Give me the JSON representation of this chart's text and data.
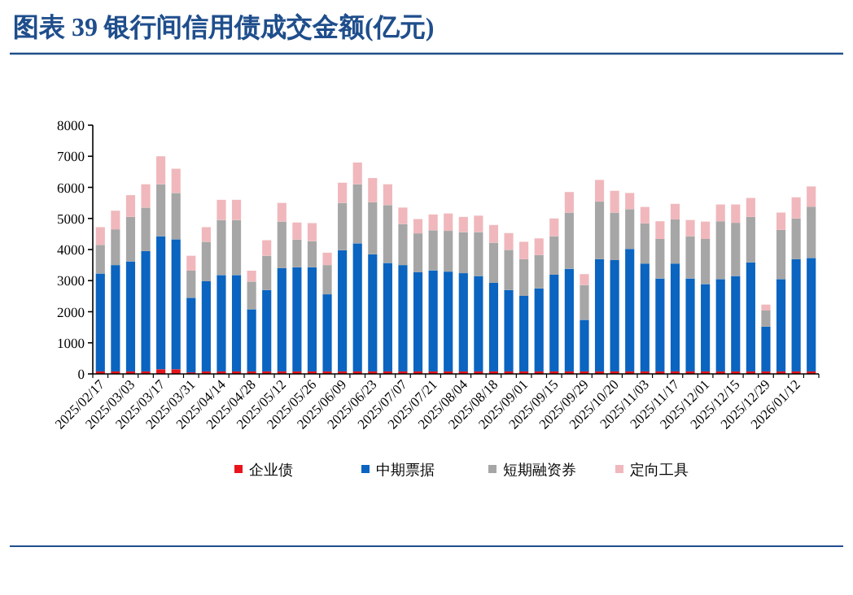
{
  "chart_data": {
    "type": "bar",
    "stacked": true,
    "title": "图表 39  银行间信用债成交金额(亿元)",
    "categories": [
      "2025/02/17",
      null,
      "2025/03/03",
      null,
      "2025/03/17",
      null,
      "2025/03/31",
      null,
      "2025/04/14",
      null,
      "2025/04/28",
      null,
      "2025/05/12",
      null,
      "2025/05/26",
      null,
      "2025/06/09",
      null,
      "2025/06/23",
      null,
      "2025/07/07",
      null,
      "2025/07/21",
      null,
      "2025/08/04",
      null,
      "2025/08/18",
      null,
      "2025/09/01",
      null,
      "2025/09/15",
      null,
      "2025/09/29",
      null,
      "2025/10/20",
      null,
      "2025/11/03",
      null,
      "2025/11/17",
      null,
      "2025/12/01",
      null,
      "2025/12/15",
      null,
      "2025/12/29",
      null,
      "2026/01/12",
      null
    ],
    "series": [
      {
        "name": "企业债",
        "color": "#e8141c",
        "values": [
          80,
          80,
          80,
          80,
          150,
          150,
          50,
          80,
          80,
          80,
          80,
          80,
          80,
          80,
          80,
          80,
          80,
          80,
          80,
          80,
          80,
          80,
          80,
          80,
          80,
          80,
          80,
          80,
          80,
          80,
          80,
          80,
          80,
          80,
          80,
          80,
          80,
          80,
          80,
          80,
          80,
          80,
          80,
          80,
          80,
          80,
          80,
          80
        ]
      },
      {
        "name": "中期票据",
        "color": "#0a64c0",
        "values": [
          3150,
          3420,
          3540,
          3870,
          4280,
          4180,
          2400,
          2900,
          3100,
          3100,
          2000,
          2620,
          3320,
          3350,
          3350,
          2480,
          3900,
          4120,
          3770,
          3490,
          3420,
          3190,
          3250,
          3210,
          3160,
          3070,
          2850,
          2620,
          2430,
          2670,
          3110,
          3300,
          1660,
          3610,
          3580,
          3940,
          3470,
          2990,
          3470,
          2990,
          2810,
          2970,
          3070,
          3510,
          1440,
          2970,
          3610,
          3650
        ]
      },
      {
        "name": "短期融资券",
        "color": "#a6a6a6",
        "values": [
          920,
          1150,
          1430,
          1400,
          1670,
          1490,
          870,
          1270,
          1770,
          1770,
          890,
          1100,
          1500,
          890,
          840,
          940,
          1520,
          1900,
          1670,
          1860,
          1320,
          1250,
          1290,
          1310,
          1320,
          1410,
          1290,
          1290,
          1180,
          1070,
          1240,
          1810,
          1120,
          1850,
          1530,
          1280,
          1290,
          1270,
          1420,
          1360,
          1450,
          1860,
          1710,
          1460,
          520,
          1580,
          1310,
          1650
        ]
      },
      {
        "name": "定向工具",
        "color": "#f0b8bc",
        "values": [
          570,
          600,
          700,
          750,
          900,
          780,
          480,
          470,
          650,
          650,
          350,
          500,
          600,
          550,
          580,
          400,
          650,
          700,
          780,
          670,
          530,
          460,
          510,
          560,
          490,
          530,
          570,
          540,
          560,
          540,
          570,
          660,
          350,
          700,
          700,
          520,
          530,
          570,
          500,
          520,
          560,
          540,
          590,
          610,
          190,
          560,
          680,
          650
        ]
      }
    ],
    "ylim": [
      0,
      8000
    ],
    "yticks": [
      0,
      1000,
      2000,
      3000,
      4000,
      5000,
      6000,
      7000,
      8000
    ],
    "grid": false,
    "legend": "bottom"
  }
}
